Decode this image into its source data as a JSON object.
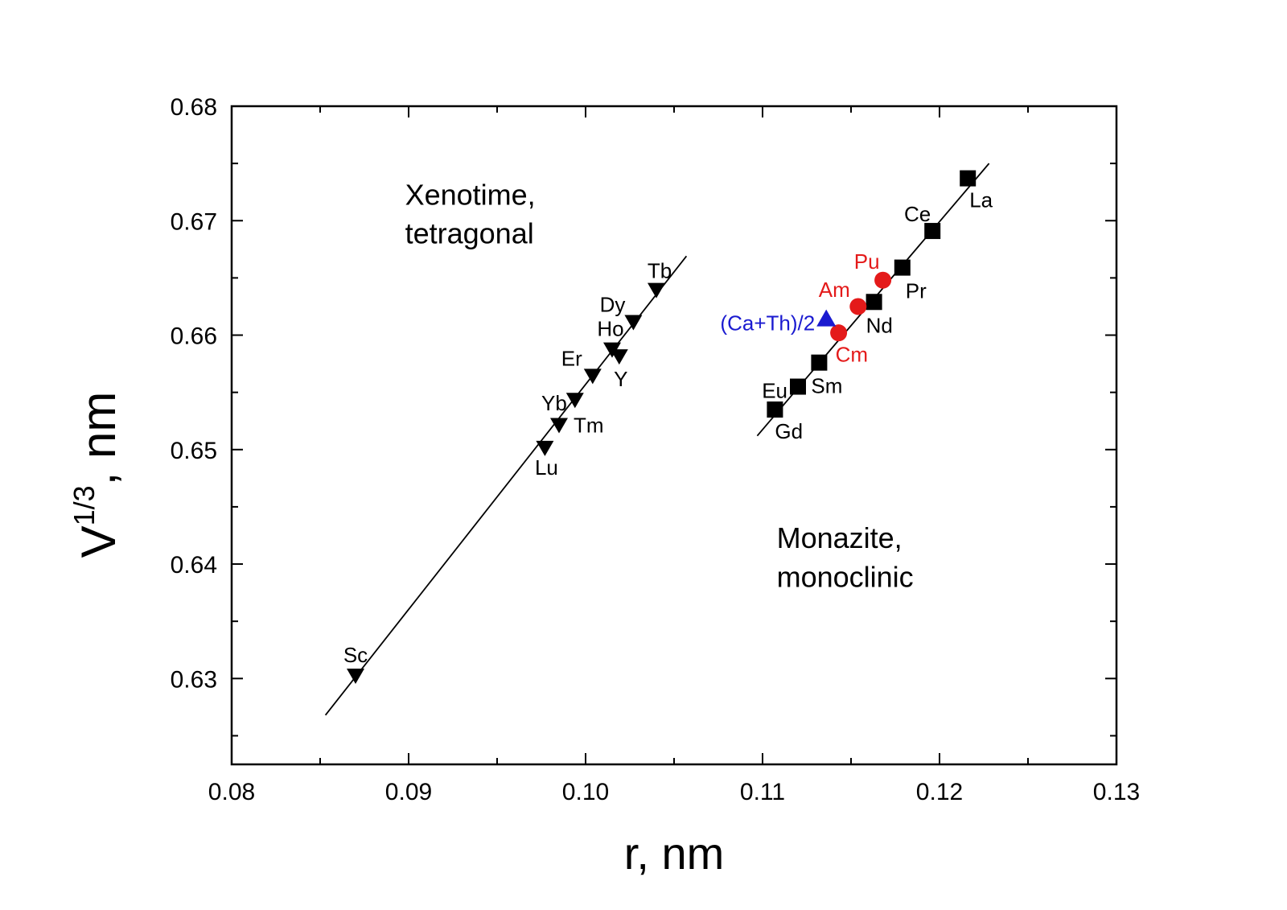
{
  "chart_data": {
    "type": "scatter",
    "xlabel": "r, nm",
    "ylabel_main": "V",
    "ylabel_sup": "1/3",
    "ylabel_tail": ", nm",
    "xlim": [
      0.08,
      0.13
    ],
    "ylim": [
      0.6225,
      0.68
    ],
    "x_ticks": [
      0.08,
      0.09,
      0.1,
      0.11,
      0.12,
      0.13
    ],
    "x_tick_labels": [
      "0.08",
      "0.09",
      "0.10",
      "0.11",
      "0.12",
      "0.13"
    ],
    "y_ticks": [
      0.63,
      0.64,
      0.65,
      0.66,
      0.67,
      0.68
    ],
    "y_tick_labels": [
      "0.63",
      "0.64",
      "0.65",
      "0.66",
      "0.67",
      "0.68"
    ],
    "grid": false,
    "annotations": [
      {
        "id": "xenotime-line1",
        "text": "Xenotime,",
        "x": 0.0898,
        "y": 0.6714
      },
      {
        "id": "xenotime-line2",
        "text": "tetragonal",
        "x": 0.0898,
        "y": 0.668
      },
      {
        "id": "monazite-line1",
        "text": "Monazite,",
        "x": 0.1108,
        "y": 0.6414
      },
      {
        "id": "monazite-line2",
        "text": "monoclinic",
        "x": 0.1108,
        "y": 0.638
      }
    ],
    "series": [
      {
        "group": "xenotime",
        "marker": "triangle-down",
        "color": "#000000",
        "points": [
          {
            "label": "Sc",
            "x": 0.087,
            "y": 0.6303
          },
          {
            "label": "Lu",
            "x": 0.0977,
            "y": 0.6502
          },
          {
            "label": "Tm",
            "x": 0.0985,
            "y": 0.6522
          },
          {
            "label": "Yb",
            "x": 0.0994,
            "y": 0.6544
          },
          {
            "label": "Er",
            "x": 0.1004,
            "y": 0.6565
          },
          {
            "label": "Ho",
            "x": 0.1015,
            "y": 0.6588
          },
          {
            "label": "Y",
            "x": 0.1019,
            "y": 0.6582
          },
          {
            "label": "Dy",
            "x": 0.1027,
            "y": 0.6612
          },
          {
            "label": "Tb",
            "x": 0.104,
            "y": 0.664
          }
        ],
        "fit": [
          [
            0.0853,
            0.6268
          ],
          [
            0.1057,
            0.6669
          ]
        ]
      },
      {
        "group": "monazite",
        "marker": "square",
        "color": "#000000",
        "points": [
          {
            "label": "Gd",
            "x": 0.1107,
            "y": 0.6535
          },
          {
            "label": "Eu",
            "x": 0.112,
            "y": 0.6555
          },
          {
            "label": "Sm",
            "x": 0.1132,
            "y": 0.6576
          },
          {
            "label": "Nd",
            "x": 0.1163,
            "y": 0.6629
          },
          {
            "label": "Pr",
            "x": 0.1179,
            "y": 0.6659
          },
          {
            "label": "Ce",
            "x": 0.1196,
            "y": 0.6691
          },
          {
            "label": "La",
            "x": 0.1216,
            "y": 0.6737
          }
        ],
        "fit": [
          [
            0.1097,
            0.6512
          ],
          [
            0.1228,
            0.675
          ]
        ]
      },
      {
        "group": "actinides",
        "marker": "circle",
        "color": "#e41a1a",
        "points": [
          {
            "label": "Cm",
            "x": 0.1143,
            "y": 0.6602
          },
          {
            "label": "Am",
            "x": 0.1154,
            "y": 0.6625
          },
          {
            "label": "Pu",
            "x": 0.1168,
            "y": 0.6648
          }
        ]
      },
      {
        "group": "ca-th",
        "marker": "triangle-up",
        "color": "#1a1ad0",
        "points": [
          {
            "label": "(Ca+Th)/2",
            "x": 0.1136,
            "y": 0.6614
          }
        ]
      }
    ]
  }
}
